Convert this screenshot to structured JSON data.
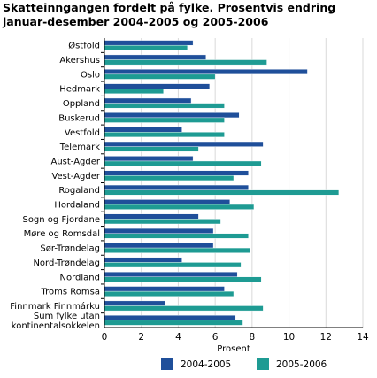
{
  "chart_data": {
    "type": "bar",
    "orientation": "horizontal",
    "title": "Skatteinngangen fordelt på fylke. Prosentvis endring januar-desember 2004-2005 og 2005-2006",
    "xlabel": "Prosent",
    "xlim": [
      0,
      14
    ],
    "xticks": [
      "0",
      "2",
      "4",
      "6",
      "8",
      "10",
      "12",
      "14"
    ],
    "grid": true,
    "legend_position": "bottom",
    "categories": [
      [
        "Østfold"
      ],
      [
        "Akershus"
      ],
      [
        "Oslo"
      ],
      [
        "Hedmark"
      ],
      [
        "Oppland"
      ],
      [
        "Buskerud"
      ],
      [
        "Vestfold"
      ],
      [
        "Telemark"
      ],
      [
        "Aust-Agder"
      ],
      [
        "Vest-Agder"
      ],
      [
        "Rogaland"
      ],
      [
        "Hordaland"
      ],
      [
        "Sogn og Fjordane"
      ],
      [
        "Møre og Romsdal"
      ],
      [
        "Sør-Trøndelag"
      ],
      [
        "Nord-Trøndelag"
      ],
      [
        "Nordland"
      ],
      [
        "Troms Romsa"
      ],
      [
        "Finnmark Finnmárku"
      ],
      [
        "Sum fylke utan",
        "kontinentalsokkelen"
      ]
    ],
    "series": [
      {
        "name": "2004-2005",
        "color": "#1f4f9a",
        "values": [
          4.8,
          5.5,
          11.0,
          5.7,
          4.7,
          7.3,
          4.2,
          8.6,
          4.8,
          7.8,
          7.8,
          6.8,
          5.1,
          5.9,
          5.9,
          4.2,
          7.2,
          6.5,
          3.3,
          7.1
        ]
      },
      {
        "name": "2005-2006",
        "color": "#1e9b93",
        "values": [
          4.5,
          8.8,
          6.0,
          3.2,
          6.5,
          6.5,
          6.5,
          5.1,
          8.5,
          7.0,
          12.7,
          8.1,
          6.3,
          7.8,
          7.9,
          7.4,
          8.5,
          7.0,
          8.6,
          7.5
        ]
      }
    ]
  }
}
